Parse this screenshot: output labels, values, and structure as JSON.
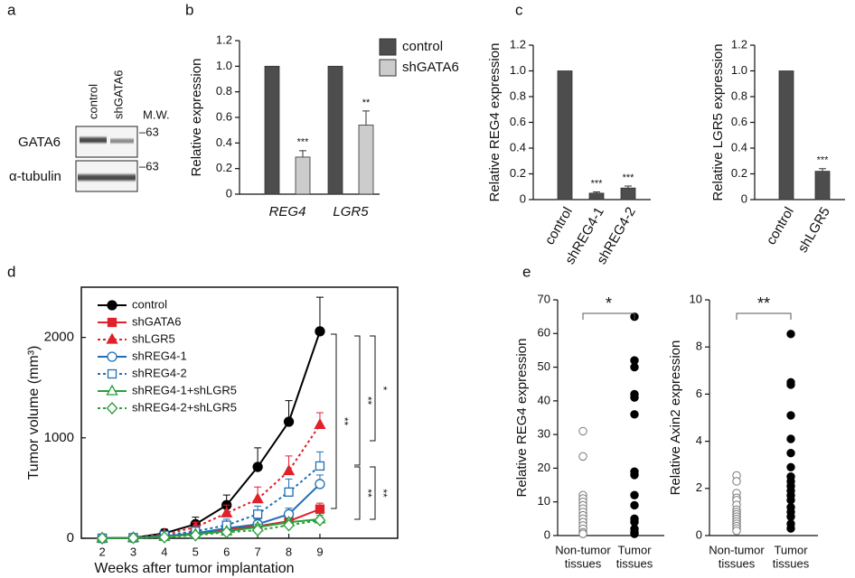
{
  "panel_labels": [
    "a",
    "b",
    "c",
    "d",
    "e"
  ],
  "blot": {
    "lanes": [
      "control",
      "shGATA6"
    ],
    "mw_header": "M.W.",
    "rows": [
      {
        "label": "GATA6",
        "mw": "–63"
      },
      {
        "label": "α-tubulin",
        "mw": "–63"
      }
    ]
  },
  "chart_data": [
    {
      "type": "bar",
      "ylabel": "Relative expression",
      "categories": [
        "REG4",
        "LGR5"
      ],
      "category_style": "italic",
      "series": [
        {
          "name": "control",
          "color": "#4d4d4d",
          "values": [
            1,
            1
          ]
        },
        {
          "name": "shGATA6",
          "color": "#cccccc",
          "values": [
            0.29,
            0.54
          ],
          "errors": [
            0.05,
            0.11
          ],
          "significance": [
            "***",
            "**"
          ]
        }
      ],
      "ylim": [
        0,
        1.2
      ],
      "yticks": [
        0,
        0.2,
        0.4,
        0.6,
        0.8,
        {
          "value": 1,
          "label": "1.0"
        },
        1.2
      ],
      "legend": "upper right"
    },
    {
      "type": "bar",
      "ylabel": "Relative REG4 expression",
      "categories": [
        "control",
        "shREG4-1",
        "shREG4-2"
      ],
      "category_style": "rotated",
      "series": [
        {
          "color": "#4d4d4d",
          "values": [
            1,
            0.05,
            0.09
          ],
          "errors": [
            null,
            0.01,
            0.015
          ],
          "significance": [
            null,
            "***",
            "***"
          ]
        }
      ],
      "ylim": [
        0,
        1.2
      ],
      "yticks": [
        0,
        0.2,
        0.4,
        0.6,
        0.8,
        {
          "value": 1,
          "label": "1.0"
        },
        1.2
      ]
    },
    {
      "type": "bar",
      "ylabel": "Relative LGR5 expression",
      "categories": [
        "control",
        "shLGR5"
      ],
      "category_style": "rotated",
      "series": [
        {
          "color": "#4d4d4d",
          "values": [
            1,
            0.22
          ],
          "errors": [
            null,
            0.02
          ],
          "significance": [
            null,
            "***"
          ]
        }
      ],
      "ylim": [
        0,
        1.2
      ],
      "yticks": [
        0,
        0.2,
        0.4,
        0.6,
        0.8,
        {
          "value": 1,
          "label": "1.0"
        },
        1.2
      ]
    },
    {
      "type": "line",
      "xlabel": "Weeks after tumor implantation",
      "ylabel": "Tumor volume (mm³)",
      "x": [
        2,
        3,
        4,
        5,
        6,
        7,
        8,
        9
      ],
      "xlim": [
        1.33,
        11.5
      ],
      "ylim": [
        0,
        2500
      ],
      "xticks": [
        2,
        3,
        4,
        5,
        6,
        7,
        8,
        9
      ],
      "yticks": [
        0,
        1000,
        2000
      ],
      "legend": "upper left",
      "series": [
        {
          "name": "control",
          "color": "#000000",
          "dash": false,
          "marker": "circle",
          "filled": true,
          "values": [
            0,
            5,
            50,
            140,
            330,
            710,
            1160,
            2060
          ],
          "errors": [
            null,
            null,
            40,
            70,
            100,
            190,
            210,
            340
          ]
        },
        {
          "name": "shGATA6",
          "color": "#e0202a",
          "dash": false,
          "marker": "square",
          "filled": true,
          "values": [
            0,
            5,
            20,
            50,
            90,
            120,
            170,
            290
          ],
          "errors": [
            null,
            null,
            10,
            20,
            30,
            30,
            40,
            60
          ]
        },
        {
          "name": "shLGR5",
          "color": "#e0202a",
          "dash": true,
          "marker": "triangle",
          "filled": true,
          "values": [
            0,
            5,
            40,
            110,
            250,
            390,
            670,
            1130
          ],
          "errors": [
            null,
            null,
            30,
            50,
            80,
            120,
            150,
            120
          ]
        },
        {
          "name": "shREG4-1",
          "color": "#1f6fb5",
          "dash": false,
          "marker": "circle",
          "filled": false,
          "values": [
            0,
            5,
            20,
            50,
            100,
            140,
            240,
            540
          ],
          "errors": [
            null,
            null,
            10,
            20,
            40,
            50,
            60,
            90
          ]
        },
        {
          "name": "shREG4-2",
          "color": "#1f6fb5",
          "dash": true,
          "marker": "square",
          "filled": false,
          "values": [
            0,
            5,
            30,
            70,
            130,
            240,
            460,
            720
          ],
          "errors": [
            null,
            null,
            15,
            30,
            60,
            80,
            130,
            140
          ]
        },
        {
          "name": "shREG4-1+shLGR5",
          "color": "#2a9d3a",
          "dash": false,
          "marker": "triangle",
          "filled": false,
          "values": [
            0,
            5,
            15,
            40,
            70,
            110,
            160,
            190
          ],
          "errors": [
            null,
            null,
            10,
            15,
            20,
            30,
            40,
            40
          ]
        },
        {
          "name": "shREG4-2+shLGR5",
          "color": "#2a9d3a",
          "dash": true,
          "marker": "diamond",
          "filled": false,
          "values": [
            0,
            3,
            10,
            30,
            60,
            80,
            130,
            180
          ],
          "errors": [
            null,
            null,
            10,
            15,
            20,
            20,
            30,
            30
          ]
        }
      ],
      "annotations": [
        "**",
        "**",
        "*",
        "**",
        "**"
      ]
    },
    {
      "type": "strip",
      "ylabel": "Relative REG4 expression",
      "categories": [
        [
          "Non-tumor",
          "tissues"
        ],
        [
          "Tumor",
          "tissues"
        ]
      ],
      "filled": [
        false,
        true
      ],
      "color": "#000000",
      "values": [
        [
          31,
          23.5,
          12,
          11,
          10,
          9,
          8,
          7,
          6,
          5,
          4,
          3,
          2,
          1,
          0.5
        ],
        [
          65,
          52,
          50,
          42,
          41,
          36,
          19,
          18,
          12,
          9,
          5,
          4,
          2,
          1,
          0.5
        ]
      ],
      "ylim": [
        0,
        70
      ],
      "yticks": [
        0,
        10,
        20,
        30,
        40,
        50,
        60,
        70
      ],
      "significance": "*"
    },
    {
      "type": "strip",
      "ylabel": "Relative Axin2 expression",
      "categories": [
        [
          "Non-tumor",
          "tissues"
        ],
        [
          "Tumor",
          "tissues"
        ]
      ],
      "filled": [
        false,
        true
      ],
      "color": "#000000",
      "values": [
        [
          2.55,
          2.3,
          1.8,
          1.6,
          1.5,
          1.3,
          1.1,
          1.0,
          0.9,
          0.8,
          0.7,
          0.6,
          0.5,
          0.4,
          0.3,
          0.2
        ],
        [
          8.55,
          6.5,
          6.4,
          5.1,
          4.1,
          3.5,
          2.9,
          2.5,
          2.3,
          2.1,
          1.9,
          1.7,
          1.5,
          1.2,
          1.0,
          0.8,
          0.5,
          0.3
        ]
      ],
      "ylim": [
        0,
        10
      ],
      "yticks": [
        0,
        2,
        4,
        6,
        8,
        10
      ],
      "significance": "**"
    }
  ]
}
